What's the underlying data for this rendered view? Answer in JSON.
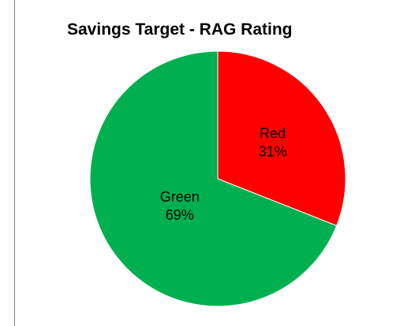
{
  "chart_data": {
    "type": "pie",
    "title": "Savings Target - RAG Rating",
    "categories": [
      "Red",
      "Green"
    ],
    "values": [
      31,
      69
    ],
    "labels": [
      "31%",
      "69%"
    ],
    "colors": [
      "#ff0000",
      "#00b050"
    ],
    "legend": "none"
  }
}
